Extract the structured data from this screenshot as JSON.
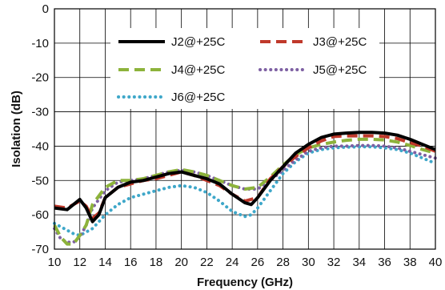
{
  "chart_data": {
    "type": "line",
    "title": "",
    "xlabel": "Frequency (GHz)",
    "ylabel": "Isolation (dB)",
    "xlim": [
      10,
      40
    ],
    "ylim": [
      -70,
      0
    ],
    "xticks": [
      10,
      12,
      14,
      16,
      18,
      20,
      22,
      24,
      26,
      28,
      30,
      32,
      34,
      36,
      38,
      40
    ],
    "yticks": [
      0,
      -10,
      -20,
      -30,
      -40,
      -50,
      -60,
      -70
    ],
    "grid": "both",
    "legend_position": "top",
    "series": [
      {
        "name": "J2@+25C",
        "color": "#000000",
        "style": "solid",
        "x": [
          10,
          11,
          11.5,
          12,
          12.5,
          13,
          13.5,
          14,
          15,
          16,
          17,
          18,
          19,
          20,
          21,
          22,
          23,
          24,
          25,
          25.5,
          26,
          27,
          28,
          29,
          30,
          31,
          32,
          33,
          34,
          35,
          36,
          37,
          38,
          39,
          40
        ],
        "y": [
          -58,
          -58.5,
          -57,
          -55.5,
          -58,
          -62,
          -60,
          -55,
          -52,
          -50.5,
          -50,
          -49,
          -48,
          -47.5,
          -48.5,
          -49.5,
          -51,
          -54,
          -56.5,
          -57,
          -55,
          -50,
          -46,
          -42,
          -39.5,
          -37.5,
          -36.5,
          -36.2,
          -36,
          -36,
          -36.2,
          -36.8,
          -38,
          -39.5,
          -41
        ]
      },
      {
        "name": "J3@+25C",
        "color": "#c0392b",
        "style": "dashed",
        "x": [
          10,
          11,
          11.5,
          12,
          12.5,
          13,
          13.5,
          14,
          15,
          16,
          17,
          18,
          19,
          20,
          21,
          22,
          23,
          24,
          25,
          26,
          27,
          28,
          29,
          30,
          31,
          32,
          33,
          34,
          35,
          36,
          37,
          38,
          39,
          40
        ],
        "y": [
          -57.5,
          -58,
          -57,
          -56,
          -57.5,
          -61,
          -59.5,
          -55,
          -52,
          -51,
          -50,
          -49.5,
          -48.5,
          -47.5,
          -48.5,
          -50,
          -51.5,
          -54,
          -56,
          -55,
          -49.5,
          -46,
          -43,
          -40.5,
          -38.5,
          -37.2,
          -37,
          -37,
          -37,
          -37.2,
          -37.8,
          -39,
          -40,
          -41.5
        ]
      },
      {
        "name": "J4@+25C",
        "color": "#8db33b",
        "style": "dashed",
        "x": [
          10,
          10.5,
          11,
          11.5,
          12,
          12.5,
          13,
          14,
          15,
          16,
          17,
          18,
          19,
          20,
          21,
          22,
          23,
          24,
          25,
          26,
          27,
          28,
          29,
          30,
          31,
          32,
          33,
          34,
          35,
          36,
          37,
          38,
          39,
          40
        ],
        "y": [
          -63,
          -66.5,
          -68.5,
          -68.5,
          -66,
          -63,
          -57,
          -52,
          -50,
          -50,
          -49.5,
          -48.5,
          -47.5,
          -46.8,
          -47.5,
          -48.5,
          -50,
          -51.5,
          -52.5,
          -52,
          -49,
          -45.5,
          -42.5,
          -40.5,
          -39.5,
          -38.8,
          -38.3,
          -38,
          -38,
          -38.2,
          -38.8,
          -39.8,
          -41,
          -42
        ]
      },
      {
        "name": "J5@+25C",
        "color": "#7e60a3",
        "style": "dotted",
        "x": [
          10,
          10.5,
          11,
          11.5,
          12,
          12.5,
          13,
          14,
          15,
          16,
          17,
          18,
          19,
          20,
          21,
          22,
          23,
          24,
          25,
          26,
          27,
          28,
          29,
          30,
          31,
          32,
          33,
          34,
          35,
          36,
          37,
          38,
          39,
          40
        ],
        "y": [
          -64,
          -67,
          -68,
          -68,
          -66.5,
          -63,
          -58,
          -53,
          -50.5,
          -50,
          -49.5,
          -48.5,
          -47.5,
          -47,
          -47.5,
          -48.5,
          -50,
          -51.5,
          -52.5,
          -52.5,
          -50,
          -47,
          -44,
          -41.5,
          -40.5,
          -40,
          -40,
          -39.8,
          -39.8,
          -40,
          -40.5,
          -41.5,
          -42.5,
          -43.5
        ]
      },
      {
        "name": "J6@+25C",
        "color": "#3ea7c9",
        "style": "dotted",
        "x": [
          10,
          10.5,
          11,
          11.5,
          12,
          12.5,
          13,
          13.5,
          14,
          15,
          16,
          17,
          18,
          19,
          20,
          21,
          22,
          23,
          24,
          25,
          25.5,
          26,
          27,
          28,
          29,
          30,
          31,
          32,
          33,
          34,
          35,
          36,
          37,
          38,
          39,
          40
        ],
        "y": [
          -62.5,
          -63.5,
          -64.5,
          -65.5,
          -66,
          -65,
          -64,
          -62,
          -60,
          -57,
          -55,
          -54,
          -53,
          -52,
          -51.5,
          -52,
          -53.5,
          -56,
          -59,
          -60.5,
          -60,
          -58,
          -53,
          -48,
          -44.5,
          -42,
          -41,
          -40.5,
          -40.3,
          -40.2,
          -40.2,
          -40.5,
          -41,
          -42,
          -43.5,
          -45
        ]
      }
    ]
  }
}
